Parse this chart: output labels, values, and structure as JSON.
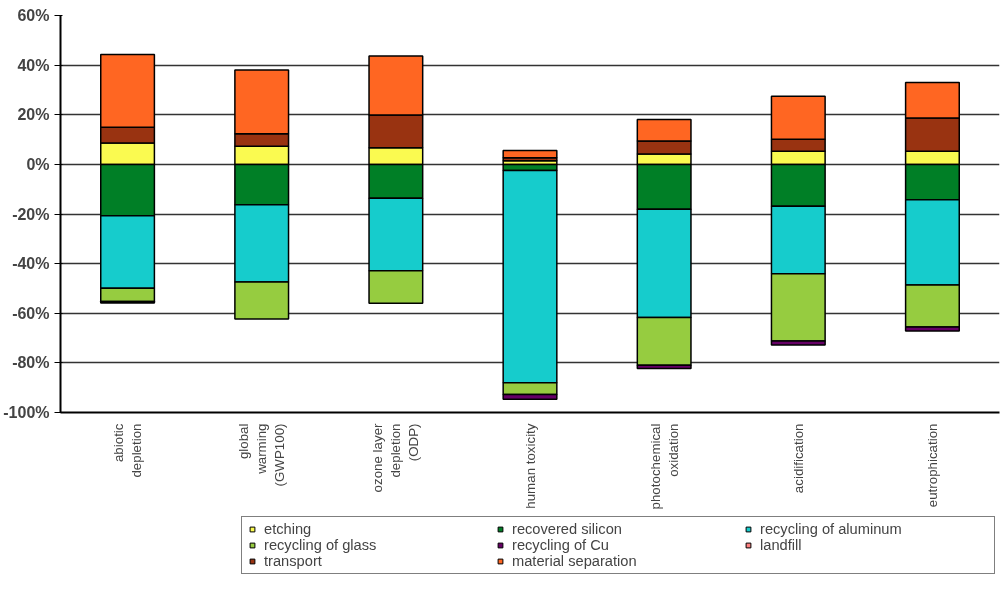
{
  "chart_data": {
    "type": "bar",
    "stacked": true,
    "categories": [
      "abiotic\ndepletion",
      "global\nwarming\n(GWP100)",
      "ozone layer\ndepletion\n(ODP)",
      "human toxicity",
      "photochemical\noxidation",
      "acidification",
      "eutrophication"
    ],
    "series": [
      {
        "name": "etching",
        "color": "#fafa50",
        "values": [
          8.6,
          7.3,
          6.7,
          1.5,
          4.2,
          5.3,
          5.3
        ]
      },
      {
        "name": "recovered silicon",
        "color": "#007f26",
        "values": [
          -20.7,
          -16.3,
          -13.7,
          -2.5,
          -18.1,
          -16.9,
          -14.3
        ]
      },
      {
        "name": "recycling of aluminum",
        "color": "#16cccc",
        "values": [
          -29.2,
          -31.1,
          -29.2,
          -85.5,
          -43.6,
          -27.2,
          -34.3
        ]
      },
      {
        "name": "recycling of glass",
        "color": "#96cc40",
        "values": [
          -5.4,
          -14.9,
          -13.1,
          -4.7,
          -19.3,
          -27.1,
          -16.9
        ]
      },
      {
        "name": "recycling of Cu",
        "color": "#660066",
        "values": [
          -0.6,
          null,
          null,
          -2.0,
          -1.3,
          -1.6,
          -1.7
        ]
      },
      {
        "name": "landfill",
        "color": "#ff8080",
        "values": [
          null,
          null,
          null,
          null,
          null,
          null,
          null
        ]
      },
      {
        "name": "transport",
        "color": "#993311",
        "values": [
          6.4,
          5.0,
          13.2,
          1.2,
          5.2,
          4.8,
          13.4
        ]
      },
      {
        "name": "material separation",
        "color": "#ff6622",
        "values": [
          29.3,
          25.7,
          23.8,
          2.9,
          8.7,
          17.4,
          14.3
        ]
      }
    ],
    "ylim": [
      -100,
      60
    ],
    "yticks": [
      {
        "value": -100,
        "label": "-100%"
      },
      {
        "value": -80,
        "label": "-80%"
      },
      {
        "value": -60,
        "label": "-60%"
      },
      {
        "value": -40,
        "label": "-40%"
      },
      {
        "value": -20,
        "label": "-20%"
      },
      {
        "value": 0,
        "label": "0%"
      },
      {
        "value": 20,
        "label": "20%"
      },
      {
        "value": 40,
        "label": "40%"
      },
      {
        "value": 60,
        "label": "60%"
      }
    ],
    "grid": "y",
    "legend": "bottom"
  }
}
